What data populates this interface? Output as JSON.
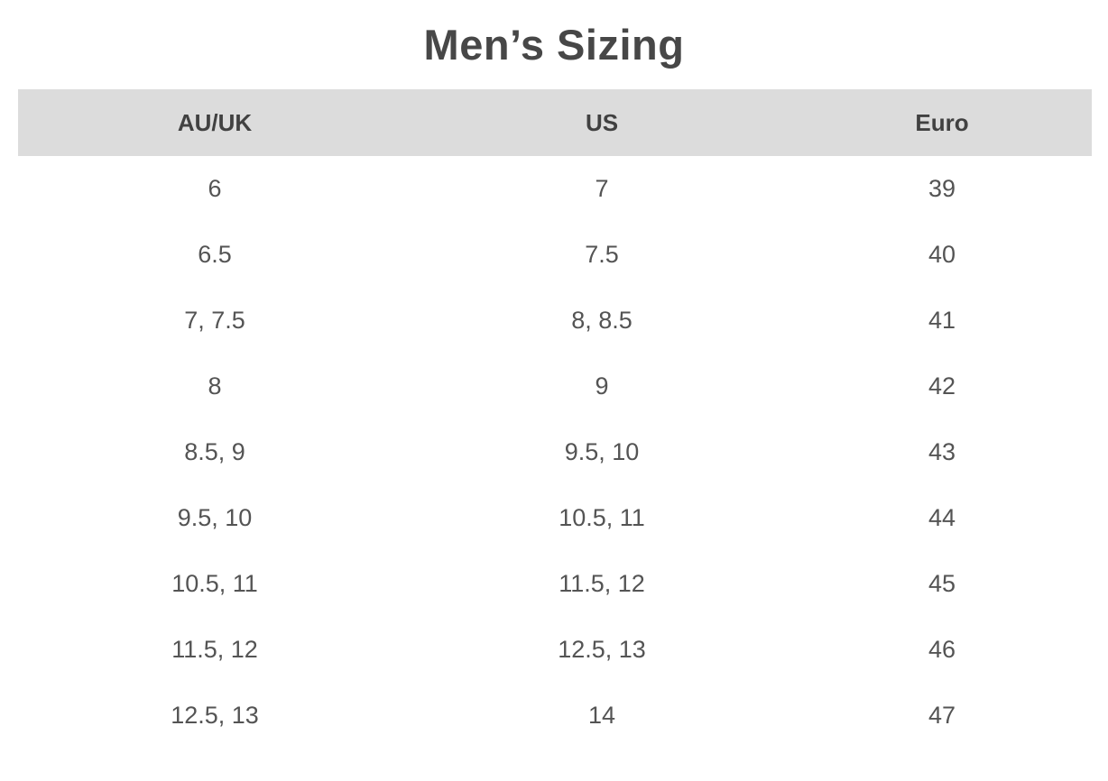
{
  "page": {
    "title": "Men’s Sizing"
  },
  "table": {
    "headers": {
      "auuk": "AU/UK",
      "us": "US",
      "euro": "Euro"
    },
    "rows": [
      [
        "6",
        "7",
        "39"
      ],
      [
        "6.5",
        "7.5",
        "40"
      ],
      [
        "7, 7.5",
        "8, 8.5",
        "41"
      ],
      [
        "8",
        "9",
        "42"
      ],
      [
        "8.5, 9",
        "9.5, 10",
        "43"
      ],
      [
        "9.5, 10",
        "10.5, 11",
        "44"
      ],
      [
        "10.5, 11",
        "11.5, 12",
        "45"
      ],
      [
        "11.5, 12",
        "12.5, 13",
        "46"
      ],
      [
        "12.5, 13",
        "14",
        "47"
      ]
    ]
  },
  "colors": {
    "header_background": "#dcdcdc",
    "title_text": "#474747",
    "header_text": "#414141",
    "body_text": "#545454",
    "page_background": "#ffffff"
  }
}
